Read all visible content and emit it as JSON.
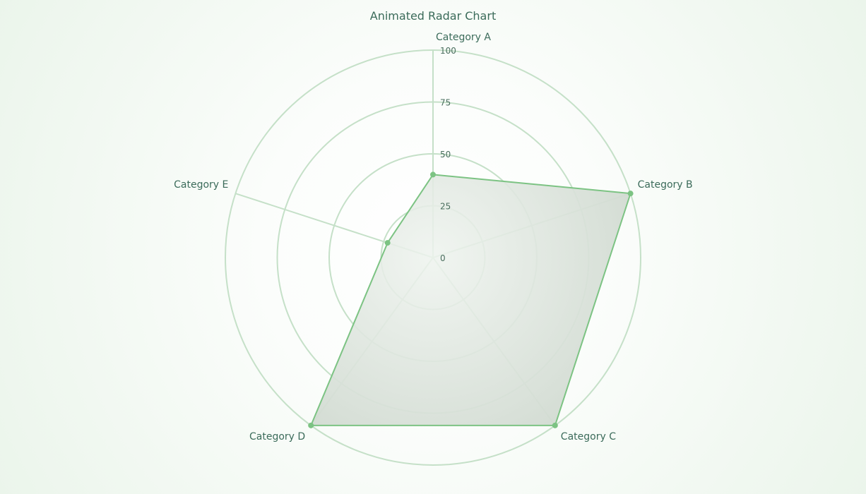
{
  "chart_data": {
    "type": "radar",
    "title": "Animated Radar Chart",
    "categories": [
      "Category A",
      "Category B",
      "Category C",
      "Category D",
      "Category E"
    ],
    "series": [
      {
        "values": [
          40,
          100,
          100,
          100,
          23
        ]
      }
    ],
    "rlim": [
      0,
      100
    ],
    "ticks": [
      "0",
      "25",
      "50",
      "75",
      "100"
    ],
    "tick_values": [
      0,
      25,
      50,
      75,
      100
    ],
    "grid": true,
    "grid_shape": "circle",
    "colors": {
      "grid": "#c5e0c8",
      "stroke": "#7cc383",
      "point": "#7cc383",
      "fill_center": "#eef3ee",
      "fill_edge": "#d2dbd2"
    }
  }
}
